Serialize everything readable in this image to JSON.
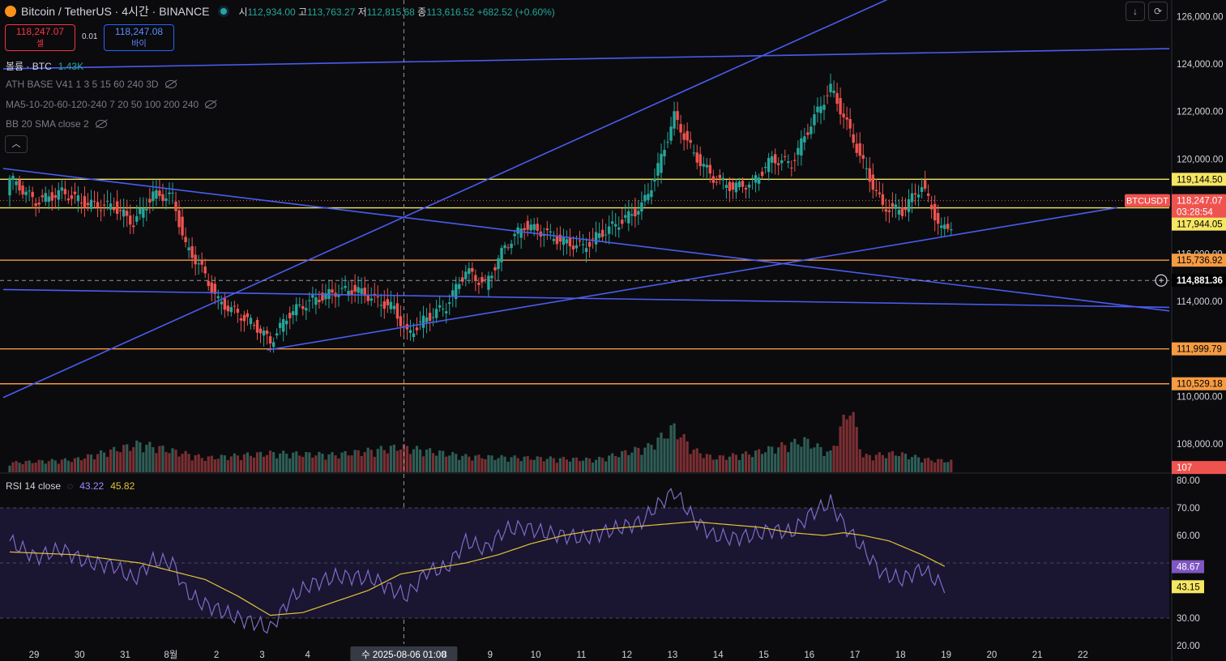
{
  "symbol": {
    "name": "Bitcoin / TetherUS · 4시간 · BINANCE"
  },
  "ohlc": {
    "open_label": "시",
    "open": "112,934.00",
    "high_label": "고",
    "high": "113,763.27",
    "low_label": "저",
    "low": "112,815.68",
    "close_label": "종",
    "close": "113,616.52",
    "change": "+682.52 (+0.60%)"
  },
  "trade": {
    "sell_price": "118,247.07",
    "sell_label": "셀",
    "spread": "0.01",
    "buy_price": "118,247.08",
    "buy_label": "바이"
  },
  "indicators": {
    "volume_label": "볼륨 · BTC",
    "volume_value": "1.43K",
    "ath": "ATH BASE V41 1 3 5 15 60 240 3D",
    "ma": "MA5-10-20-60-120-240 7 20 50 100 200 240",
    "bb": "BB 20 SMA close 2"
  },
  "rsi": {
    "label": "RSI 14 close",
    "value": "43.22",
    "ma_value": "45.82",
    "axis_rsi": "48.67",
    "axis_ma": "43.15"
  },
  "toolbar": {
    "collapse_icon": "chevron-up-icon",
    "download_icon": "arrow-down-icon",
    "refresh_icon": "refresh-icon"
  },
  "colors": {
    "up": "#26a69a",
    "down": "#ef5350",
    "trendline": "#4a5cf0",
    "yellow_level": "#f5e663",
    "orange_level": "#f59b42",
    "rsi_line": "#7e6cc9",
    "rsi_ma": "#e0c33b"
  },
  "chart_data": {
    "type": "candlestick",
    "timeframe": "4h",
    "y_axis_ticks": [
      "126,000.00",
      "124,000.00",
      "122,000.00",
      "120,000.00",
      "116,000.00",
      "114,000.00",
      "110,000.00",
      "108,000.00"
    ],
    "ylim": [
      106800,
      126700
    ],
    "x_tick_labels": [
      "29",
      "30",
      "31",
      "8월",
      "2",
      "3",
      "4",
      "수 2025-08-06  01:00",
      "8",
      "9",
      "10",
      "11",
      "12",
      "13",
      "14",
      "15",
      "16",
      "17",
      "18",
      "19",
      "20",
      "21",
      "22"
    ],
    "x_tick_index": [
      0,
      14,
      28,
      42,
      56,
      70,
      84,
      104,
      126,
      140,
      154,
      168,
      182,
      196,
      210,
      224,
      238,
      252,
      266,
      280,
      294,
      308,
      322
    ],
    "price_labels": [
      {
        "label": "119,144.50",
        "price": 119144.5,
        "color": "#f5e663"
      },
      {
        "label": "BTCUSDT",
        "price": 118247.07,
        "color": "#ef5350"
      },
      {
        "label": "118,247.07",
        "price": 118247.07,
        "color": "#ef5350"
      },
      {
        "label": "03:28:54",
        "price": 118247.07,
        "color": "#ef5350"
      },
      {
        "label": "117,944.05",
        "price": 117944.05,
        "color": "#f5e663"
      },
      {
        "label": "115,736.92",
        "price": 115736.92,
        "color": "#f59b42"
      },
      {
        "label": "114,881.36",
        "price": 114881.36,
        "color": "#000000"
      },
      {
        "label": "111,999.79",
        "price": 111999.79,
        "color": "#f59b42"
      },
      {
        "label": "110,529.18",
        "price": 110529.18,
        "color": "#f59b42"
      },
      {
        "label": "107",
        "price": 107000,
        "color": "#ef5350"
      }
    ],
    "horizontal_levels": [
      {
        "price": 119144.5,
        "color": "#f5e663"
      },
      {
        "price": 117944.05,
        "color": "#f5e663"
      },
      {
        "price": 115736.92,
        "color": "#f59b42"
      },
      {
        "price": 111999.79,
        "color": "#f59b42"
      },
      {
        "price": 110529.18,
        "color": "#f59b42"
      }
    ],
    "trendlines": [
      {
        "from": [
          -2,
          109950
        ],
        "to": [
          282,
          127500
        ]
      },
      {
        "from": [
          -2,
          123800
        ],
        "to": [
          356,
          124650
        ]
      },
      {
        "from": [
          -2,
          119600
        ],
        "to": [
          356,
          113600
        ]
      },
      {
        "from": [
          -2,
          114500
        ],
        "to": [
          356,
          113750
        ]
      },
      {
        "from": [
          79,
          111950
        ],
        "to": [
          340,
          117950
        ]
      }
    ],
    "crosshair": {
      "index": 121,
      "price": 114881.36
    },
    "close_path": [
      [
        0,
        119200
      ],
      [
        8,
        118200
      ],
      [
        16,
        118600
      ],
      [
        24,
        118100
      ],
      [
        32,
        118000
      ],
      [
        38,
        117300
      ],
      [
        44,
        118500
      ],
      [
        50,
        118400
      ],
      [
        54,
        116300
      ],
      [
        58,
        115600
      ],
      [
        64,
        114000
      ],
      [
        70,
        113500
      ],
      [
        76,
        112900
      ],
      [
        80,
        112300
      ],
      [
        86,
        113500
      ],
      [
        92,
        114000
      ],
      [
        100,
        114400
      ],
      [
        106,
        114500
      ],
      [
        112,
        114100
      ],
      [
        118,
        113700
      ],
      [
        122,
        112600
      ],
      [
        128,
        113300
      ],
      [
        134,
        113800
      ],
      [
        140,
        115300
      ],
      [
        146,
        114700
      ],
      [
        152,
        116300
      ],
      [
        158,
        117200
      ],
      [
        164,
        116900
      ],
      [
        170,
        116500
      ],
      [
        176,
        116300
      ],
      [
        182,
        116900
      ],
      [
        188,
        117400
      ],
      [
        194,
        118000
      ],
      [
        198,
        119200
      ],
      [
        204,
        121800
      ],
      [
        210,
        120200
      ],
      [
        216,
        119200
      ],
      [
        222,
        118800
      ],
      [
        228,
        119000
      ],
      [
        234,
        120000
      ],
      [
        240,
        119800
      ],
      [
        246,
        121500
      ],
      [
        252,
        123000
      ],
      [
        256,
        121800
      ],
      [
        262,
        119800
      ],
      [
        268,
        118000
      ],
      [
        274,
        117800
      ],
      [
        280,
        118900
      ],
      [
        286,
        117000
      ],
      [
        292,
        117500
      ],
      [
        298,
        117800
      ],
      [
        304,
        117700
      ],
      [
        310,
        117600
      ],
      [
        316,
        118000
      ],
      [
        322,
        118247
      ]
    ],
    "volume_path": [
      [
        0,
        30
      ],
      [
        20,
        40
      ],
      [
        40,
        90
      ],
      [
        60,
        45
      ],
      [
        80,
        60
      ],
      [
        100,
        55
      ],
      [
        120,
        80
      ],
      [
        140,
        50
      ],
      [
        160,
        45
      ],
      [
        180,
        40
      ],
      [
        196,
        80
      ],
      [
        204,
        140
      ],
      [
        210,
        70
      ],
      [
        216,
        45
      ],
      [
        228,
        60
      ],
      [
        234,
        75
      ],
      [
        244,
        100
      ],
      [
        252,
        60
      ],
      [
        258,
        210
      ],
      [
        262,
        50
      ],
      [
        272,
        60
      ],
      [
        282,
        40
      ],
      [
        296,
        30
      ],
      [
        322,
        40
      ]
    ],
    "rsi": {
      "ylim": [
        20,
        80
      ],
      "y_axis_ticks": [
        "80.00",
        "70.00",
        "60.00",
        "30.00",
        "20.00"
      ],
      "band": [
        30,
        70
      ],
      "rsi_path": [
        [
          0,
          58
        ],
        [
          8,
          52
        ],
        [
          16,
          55
        ],
        [
          24,
          50
        ],
        [
          32,
          49
        ],
        [
          38,
          44
        ],
        [
          44,
          51
        ],
        [
          50,
          50
        ],
        [
          54,
          40
        ],
        [
          58,
          36
        ],
        [
          64,
          33
        ],
        [
          70,
          30
        ],
        [
          76,
          28
        ],
        [
          80,
          26
        ],
        [
          86,
          37
        ],
        [
          92,
          42
        ],
        [
          100,
          45
        ],
        [
          106,
          45
        ],
        [
          112,
          44
        ],
        [
          118,
          40
        ],
        [
          122,
          38
        ],
        [
          128,
          47
        ],
        [
          134,
          48
        ],
        [
          140,
          58
        ],
        [
          146,
          55
        ],
        [
          152,
          62
        ],
        [
          158,
          63
        ],
        [
          164,
          61
        ],
        [
          170,
          60
        ],
        [
          176,
          59
        ],
        [
          182,
          61
        ],
        [
          188,
          63
        ],
        [
          194,
          65
        ],
        [
          198,
          70
        ],
        [
          204,
          76
        ],
        [
          210,
          66
        ],
        [
          216,
          60
        ],
        [
          222,
          59
        ],
        [
          228,
          60
        ],
        [
          234,
          62
        ],
        [
          240,
          61
        ],
        [
          246,
          68
        ],
        [
          252,
          72
        ],
        [
          256,
          64
        ],
        [
          262,
          55
        ],
        [
          268,
          46
        ],
        [
          274,
          44
        ],
        [
          280,
          48
        ],
        [
          286,
          42
        ],
        [
          292,
          42
        ],
        [
          298,
          44
        ],
        [
          304,
          42
        ],
        [
          310,
          43
        ],
        [
          316,
          46
        ],
        [
          322,
          48.67
        ]
      ],
      "ma_path": [
        [
          0,
          54
        ],
        [
          20,
          53
        ],
        [
          40,
          50
        ],
        [
          60,
          44
        ],
        [
          70,
          38
        ],
        [
          80,
          31
        ],
        [
          90,
          32
        ],
        [
          100,
          36
        ],
        [
          110,
          40
        ],
        [
          120,
          46
        ],
        [
          130,
          48
        ],
        [
          140,
          50
        ],
        [
          150,
          53
        ],
        [
          160,
          57
        ],
        [
          170,
          60
        ],
        [
          180,
          62
        ],
        [
          190,
          63
        ],
        [
          200,
          64
        ],
        [
          210,
          65
        ],
        [
          220,
          64
        ],
        [
          230,
          63
        ],
        [
          240,
          61
        ],
        [
          250,
          60
        ],
        [
          256,
          61
        ],
        [
          262,
          60
        ],
        [
          270,
          58
        ],
        [
          280,
          53
        ],
        [
          290,
          47
        ],
        [
          300,
          44
        ],
        [
          310,
          43
        ],
        [
          322,
          43.15
        ]
      ]
    }
  }
}
